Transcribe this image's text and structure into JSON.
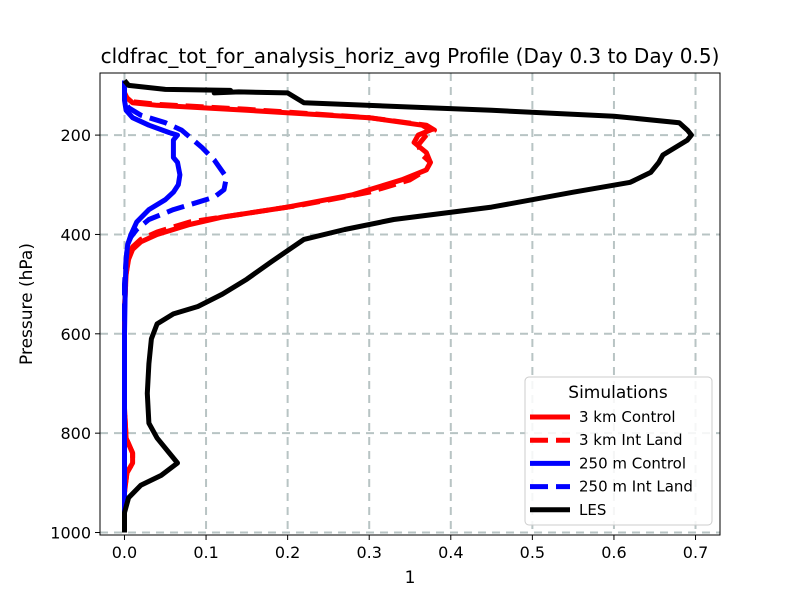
{
  "chart_data": {
    "type": "line",
    "title": "cldfrac_tot_for_analysis_horiz_avg Profile (Day 0.3 to Day 0.5)",
    "xlabel": "1",
    "ylabel": "Pressure (hPa)",
    "xlim": [
      -0.03,
      0.73
    ],
    "ylim": [
      1005,
      75
    ],
    "y_inverted": true,
    "grid": true,
    "xticks": [
      0.0,
      0.1,
      0.2,
      0.3,
      0.4,
      0.5,
      0.6,
      0.7
    ],
    "xtick_labels": [
      "0.0",
      "0.1",
      "0.2",
      "0.3",
      "0.4",
      "0.5",
      "0.6",
      "0.7"
    ],
    "yticks": [
      200,
      400,
      600,
      800,
      1000
    ],
    "ytick_labels": [
      "200",
      "400",
      "600",
      "800",
      "1000"
    ],
    "legend": {
      "title": "Simulations",
      "location": "lower-right"
    },
    "series": [
      {
        "name": "3 km Control",
        "color": "#ff0000",
        "dash": "solid",
        "x": [
          0.0,
          0.0,
          0.003,
          0.01,
          0.04,
          0.15,
          0.3,
          0.365,
          0.375,
          0.36,
          0.355,
          0.37,
          0.375,
          0.37,
          0.34,
          0.28,
          0.2,
          0.12,
          0.08,
          0.04,
          0.02,
          0.01,
          0.005,
          0.002,
          0.0,
          0.0,
          0.0,
          0.002,
          0.01,
          0.01,
          0.003,
          0.0,
          0.0
        ],
        "y": [
          90,
          115,
          125,
          135,
          140,
          150,
          165,
          180,
          190,
          200,
          215,
          235,
          255,
          270,
          290,
          320,
          345,
          365,
          380,
          400,
          415,
          430,
          450,
          480,
          550,
          650,
          750,
          810,
          840,
          860,
          880,
          920,
          1000
        ]
      },
      {
        "name": "3 km Int Land",
        "color": "#ff0000",
        "dash": "dashed",
        "x": [
          0.0,
          0.0,
          0.003,
          0.01,
          0.04,
          0.15,
          0.3,
          0.37,
          0.38,
          0.37,
          0.36,
          0.365,
          0.375,
          0.37,
          0.35,
          0.3,
          0.22,
          0.14,
          0.08,
          0.04,
          0.02,
          0.01,
          0.005,
          0.002,
          0.0,
          0.0,
          0.0,
          0.002,
          0.01,
          0.01,
          0.003,
          0.0,
          0.0
        ],
        "y": [
          90,
          115,
          125,
          133,
          138,
          148,
          165,
          180,
          190,
          200,
          220,
          240,
          255,
          270,
          290,
          315,
          340,
          360,
          375,
          395,
          410,
          425,
          445,
          480,
          550,
          650,
          750,
          810,
          840,
          860,
          880,
          920,
          1000
        ]
      },
      {
        "name": "250 m Control",
        "color": "#0000ff",
        "dash": "solid",
        "x": [
          0.0,
          0.0,
          0.002,
          0.01,
          0.03,
          0.055,
          0.065,
          0.06,
          0.06,
          0.065,
          0.068,
          0.066,
          0.06,
          0.05,
          0.03,
          0.015,
          0.008,
          0.004,
          0.002,
          0.001,
          0.0,
          0.0,
          0.0,
          0.0,
          0.0
        ],
        "y": [
          90,
          130,
          150,
          165,
          180,
          195,
          200,
          210,
          245,
          255,
          280,
          300,
          315,
          330,
          350,
          375,
          400,
          420,
          450,
          500,
          600,
          700,
          800,
          900,
          1000
        ]
      },
      {
        "name": "250 m Int Land",
        "color": "#0000ff",
        "dash": "dashed",
        "x": [
          0.0,
          0.0,
          0.005,
          0.02,
          0.05,
          0.07,
          0.095,
          0.11,
          0.125,
          0.122,
          0.11,
          0.09,
          0.06,
          0.03,
          0.015,
          0.008,
          0.004,
          0.002,
          0.0,
          0.0,
          0.0,
          0.0,
          0.0
        ],
        "y": [
          90,
          130,
          145,
          160,
          175,
          190,
          225,
          250,
          285,
          310,
          325,
          335,
          350,
          370,
          390,
          405,
          420,
          450,
          500,
          600,
          700,
          800,
          1000
        ]
      },
      {
        "name": "LES",
        "color": "#000000",
        "dash": "solid",
        "x": [
          0.0,
          0.005,
          0.05,
          0.13,
          0.11,
          0.14,
          0.2,
          0.22,
          0.45,
          0.6,
          0.68,
          0.69,
          0.695,
          0.69,
          0.66,
          0.655,
          0.645,
          0.62,
          0.55,
          0.45,
          0.33,
          0.27,
          0.22,
          0.18,
          0.15,
          0.12,
          0.09,
          0.06,
          0.04,
          0.033,
          0.03,
          0.028,
          0.03,
          0.04,
          0.055,
          0.065,
          0.045,
          0.02,
          0.005,
          0.0,
          0.0
        ],
        "y": [
          90,
          100,
          108,
          110,
          115,
          113,
          115,
          135,
          150,
          162,
          175,
          190,
          200,
          210,
          240,
          255,
          275,
          295,
          315,
          345,
          370,
          390,
          410,
          455,
          490,
          520,
          545,
          560,
          580,
          610,
          660,
          720,
          780,
          810,
          840,
          860,
          885,
          905,
          930,
          960,
          1000
        ]
      }
    ]
  }
}
